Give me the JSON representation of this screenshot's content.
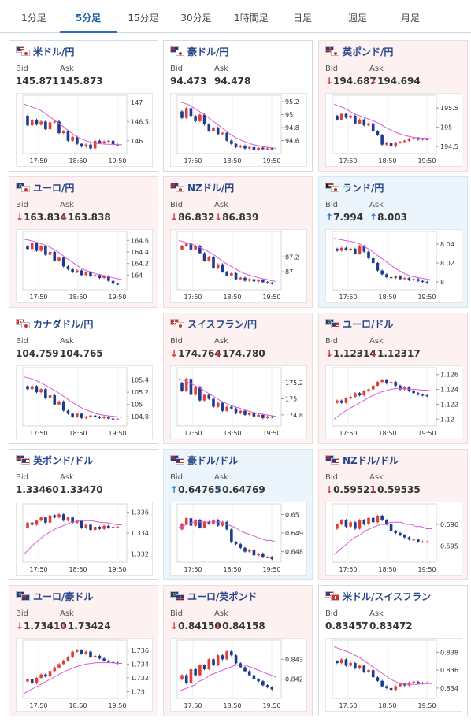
{
  "tabs": [
    {
      "label": "1分足",
      "active": false
    },
    {
      "label": "5分足",
      "active": true
    },
    {
      "label": "15分足",
      "active": false
    },
    {
      "label": "30分足",
      "active": false
    },
    {
      "label": "1時間足",
      "active": false
    },
    {
      "label": "日足",
      "active": false
    },
    {
      "label": "週足",
      "active": false
    },
    {
      "label": "月足",
      "active": false
    }
  ],
  "labels": {
    "bid": "Bid",
    "ask": "Ask"
  },
  "colors": {
    "down_arrow": "#d23b3b",
    "up_arrow": "#2f7cc4",
    "ma": "#d85ad8",
    "candle_up": "#e0403a",
    "candle_down": "#1d3b8f"
  },
  "x_ticks": [
    "17:50",
    "18:50",
    "19:50"
  ],
  "panels": [
    {
      "title": "米ドル/円",
      "flags": [
        "us",
        "jp"
      ],
      "trend": "none",
      "bid": "145.871",
      "ask": "145.873",
      "chart_data": {
        "type": "candlestick",
        "y_ticks": [
          147,
          146.5,
          146
        ],
        "ylim": [
          145.75,
          147.1
        ],
        "path": [
          146.65,
          146.4,
          146.55,
          146.42,
          146.5,
          146.3,
          146.48,
          146.5,
          146.2,
          146.25,
          146.0,
          146.1,
          145.92,
          145.85,
          145.9,
          145.8,
          146.0,
          145.95,
          145.98,
          146.0,
          145.9,
          145.88
        ],
        "ma": [
          146.95,
          146.9,
          146.85,
          146.8,
          146.72,
          146.62,
          146.52,
          146.42,
          146.32,
          146.22,
          146.12,
          146.05,
          146.0,
          145.96,
          145.93,
          145.92,
          145.91,
          145.91,
          145.9,
          145.9
        ]
      }
    },
    {
      "title": "豪ドル/円",
      "flags": [
        "au",
        "jp"
      ],
      "trend": "none",
      "bid": "94.473",
      "ask": "94.478",
      "chart_data": {
        "type": "candlestick",
        "y_ticks": [
          95.2,
          95,
          94.8,
          94.6
        ],
        "ylim": [
          94.45,
          95.25
        ],
        "path": [
          95.05,
          94.95,
          95.1,
          94.98,
          94.9,
          95.0,
          94.85,
          94.75,
          94.8,
          94.7,
          94.72,
          94.6,
          94.55,
          94.5,
          94.52,
          94.48,
          94.5,
          94.46,
          94.49,
          94.47,
          94.48,
          94.47
        ],
        "ma": [
          95.2,
          95.18,
          95.15,
          95.1,
          95.05,
          95.0,
          94.94,
          94.88,
          94.82,
          94.76,
          94.7,
          94.65,
          94.61,
          94.58,
          94.55,
          94.53,
          94.51,
          94.5,
          94.49,
          94.48
        ]
      }
    },
    {
      "title": "英ポンド/円",
      "flags": [
        "uk",
        "jp"
      ],
      "trend": "down",
      "bid": "194.687",
      "ask": "194.694",
      "chart_data": {
        "type": "candlestick",
        "y_ticks": [
          195.5,
          195,
          194.5
        ],
        "ylim": [
          194.4,
          195.75
        ],
        "path": [
          195.3,
          195.2,
          195.35,
          195.25,
          195.3,
          195.1,
          195.2,
          195.05,
          195.1,
          194.9,
          194.8,
          194.55,
          194.6,
          194.5,
          194.6,
          194.62,
          194.65,
          194.7,
          194.72,
          194.68,
          194.7,
          194.69
        ],
        "ma": [
          195.6,
          195.55,
          195.5,
          195.42,
          195.35,
          195.3,
          195.25,
          195.2,
          195.15,
          195.08,
          195.0,
          194.93,
          194.87,
          194.82,
          194.78,
          194.75,
          194.73,
          194.72,
          194.71,
          194.7
        ]
      }
    },
    {
      "title": "ユーロ/円",
      "flags": [
        "eu",
        "jp"
      ],
      "trend": "down",
      "bid": "163.834",
      "ask": "163.838",
      "chart_data": {
        "type": "candlestick",
        "y_ticks": [
          164.6,
          164.4,
          164.2,
          164
        ],
        "ylim": [
          163.8,
          164.7
        ],
        "path": [
          164.5,
          164.45,
          164.55,
          164.42,
          164.5,
          164.35,
          164.4,
          164.25,
          164.3,
          164.15,
          164.1,
          164.05,
          164.08,
          164.0,
          164.05,
          163.98,
          164.0,
          163.95,
          163.98,
          163.9,
          163.85,
          163.84
        ],
        "ma": [
          164.62,
          164.6,
          164.58,
          164.55,
          164.52,
          164.48,
          164.43,
          164.37,
          164.3,
          164.24,
          164.18,
          164.12,
          164.08,
          164.05,
          164.02,
          164.0,
          163.98,
          163.96,
          163.94,
          163.92
        ]
      }
    },
    {
      "title": "NZドル/円",
      "flags": [
        "nz",
        "jp"
      ],
      "trend": "down",
      "bid": "86.832",
      "ask": "86.839",
      "chart_data": {
        "type": "candlestick",
        "y_ticks": [
          87.2,
          87
        ],
        "ylim": [
          86.8,
          87.5
        ],
        "path": [
          87.3,
          87.35,
          87.38,
          87.3,
          87.35,
          87.25,
          87.15,
          87.2,
          87.05,
          87.1,
          87.0,
          86.95,
          86.98,
          86.9,
          86.92,
          86.88,
          86.9,
          86.87,
          86.89,
          86.86,
          86.85,
          86.84
        ],
        "ma": [
          87.42,
          87.4,
          87.38,
          87.36,
          87.33,
          87.3,
          87.26,
          87.22,
          87.17,
          87.12,
          87.08,
          87.04,
          87.0,
          86.97,
          86.95,
          86.93,
          86.91,
          86.9,
          86.88,
          86.87
        ]
      }
    },
    {
      "title": "ランド/円",
      "flags": [
        "za",
        "jp"
      ],
      "trend": "up",
      "bid": "7.994",
      "ask": "8.003",
      "chart_data": {
        "type": "candlestick",
        "y_ticks": [
          8.04,
          8.02,
          8
        ],
        "ylim": [
          7.995,
          8.05
        ],
        "path": [
          8.035,
          8.033,
          8.036,
          8.034,
          8.035,
          8.03,
          8.038,
          8.032,
          8.025,
          8.02,
          8.012,
          8.008,
          8.005,
          8.004,
          8.006,
          8.003,
          8.004,
          8.002,
          8.003,
          8.001,
          8.0,
          7.999
        ],
        "ma": [
          8.046,
          8.045,
          8.044,
          8.043,
          8.042,
          8.04,
          8.037,
          8.034,
          8.03,
          8.026,
          8.022,
          8.018,
          8.014,
          8.011,
          8.008,
          8.006,
          8.005,
          8.004,
          8.003,
          8.002
        ]
      }
    },
    {
      "title": "カナダドル/円",
      "flags": [
        "ca",
        "jp"
      ],
      "trend": "none",
      "bid": "104.759",
      "ask": "104.765",
      "chart_data": {
        "type": "candlestick",
        "y_ticks": [
          105.4,
          105.2,
          105,
          104.8
        ],
        "ylim": [
          104.7,
          105.55
        ],
        "path": [
          105.3,
          105.25,
          105.3,
          105.2,
          105.25,
          105.1,
          105.15,
          105.0,
          105.05,
          104.9,
          104.85,
          104.8,
          104.85,
          104.78,
          104.8,
          104.82,
          104.8,
          104.78,
          104.8,
          104.77,
          104.76,
          104.76
        ],
        "ma": [
          105.45,
          105.43,
          105.4,
          105.36,
          105.32,
          105.27,
          105.22,
          105.17,
          105.11,
          105.05,
          105.0,
          104.95,
          104.91,
          104.88,
          104.85,
          104.83,
          104.82,
          104.81,
          104.8,
          104.79
        ]
      }
    },
    {
      "title": "スイスフラン/円",
      "flags": [
        "ch",
        "jp"
      ],
      "trend": "down",
      "bid": "174.764",
      "ask": "174.780",
      "chart_data": {
        "type": "candlestick",
        "y_ticks": [
          175.2,
          175,
          174.8
        ],
        "ylim": [
          174.7,
          175.35
        ],
        "path": [
          175.2,
          175.1,
          175.25,
          175.05,
          175.15,
          174.98,
          175.05,
          175.0,
          174.9,
          174.95,
          174.85,
          174.9,
          174.88,
          174.82,
          174.85,
          174.8,
          174.82,
          174.78,
          174.8,
          174.76,
          174.78,
          174.77
        ],
        "ma": [
          175.25,
          175.23,
          175.2,
          175.17,
          175.14,
          175.1,
          175.06,
          175.02,
          174.98,
          174.95,
          174.92,
          174.9,
          174.88,
          174.86,
          174.84,
          174.82,
          174.81,
          174.8,
          174.79,
          174.78
        ]
      }
    },
    {
      "title": "ユーロ/ドル",
      "flags": [
        "eu",
        "us"
      ],
      "trend": "down",
      "bid": "1.12314",
      "ask": "1.12317",
      "chart_data": {
        "type": "candlestick",
        "y_ticks": [
          1.126,
          1.124,
          1.122,
          1.12
        ],
        "ylim": [
          1.1195,
          1.1265
        ],
        "path": [
          1.1222,
          1.1225,
          1.1222,
          1.1228,
          1.123,
          1.1235,
          1.1232,
          1.1238,
          1.124,
          1.1245,
          1.125,
          1.1253,
          1.1248,
          1.125,
          1.1245,
          1.124,
          1.1243,
          1.1238,
          1.1235,
          1.1233,
          1.1232,
          1.1231
        ],
        "ma": [
          1.12,
          1.1205,
          1.121,
          1.1214,
          1.1218,
          1.1222,
          1.1226,
          1.123,
          1.1233,
          1.1236,
          1.1238,
          1.124,
          1.1241,
          1.1241,
          1.1241,
          1.124,
          1.124,
          1.1239,
          1.1239,
          1.1238
        ]
      }
    },
    {
      "title": "英ポンド/ドル",
      "flags": [
        "uk",
        "us"
      ],
      "trend": "none",
      "bid": "1.33460",
      "ask": "1.33470",
      "chart_data": {
        "type": "candlestick",
        "y_ticks": [
          1.336,
          1.334,
          1.332
        ],
        "ylim": [
          1.3315,
          1.3365
        ],
        "path": [
          1.3345,
          1.335,
          1.3348,
          1.3352,
          1.3355,
          1.335,
          1.3357,
          1.3355,
          1.3358,
          1.3352,
          1.3355,
          1.335,
          1.3352,
          1.3345,
          1.3348,
          1.3343,
          1.3346,
          1.3344,
          1.3347,
          1.3345,
          1.3346,
          1.3346
        ],
        "ma": [
          1.332,
          1.3325,
          1.333,
          1.3334,
          1.3338,
          1.3341,
          1.3344,
          1.3346,
          1.3348,
          1.335,
          1.3351,
          1.3352,
          1.3352,
          1.3352,
          1.3351,
          1.335,
          1.335,
          1.3349,
          1.3348,
          1.3348
        ]
      }
    },
    {
      "title": "豪ドル/ドル",
      "flags": [
        "au",
        "us"
      ],
      "trend": "up",
      "bid": "0.64765",
      "ask": "0.64769",
      "chart_data": {
        "type": "candlestick",
        "y_ticks": [
          0.65,
          0.649,
          0.648
        ],
        "ylim": [
          0.6476,
          0.6504
        ],
        "path": [
          0.6492,
          0.6495,
          0.6498,
          0.6494,
          0.6497,
          0.6493,
          0.6496,
          0.6495,
          0.6497,
          0.6494,
          0.6496,
          0.6492,
          0.6485,
          0.6484,
          0.6482,
          0.648,
          0.6481,
          0.6478,
          0.6479,
          0.6477,
          0.6477,
          0.6476
        ],
        "ma": [
          0.6493,
          0.6494,
          0.6495,
          0.6496,
          0.6496,
          0.6496,
          0.6496,
          0.6496,
          0.6496,
          0.6495,
          0.6494,
          0.6493,
          0.6491,
          0.649,
          0.6489,
          0.6488,
          0.6487,
          0.6486,
          0.6486,
          0.6485
        ]
      }
    },
    {
      "title": "NZドル/ドル",
      "flags": [
        "nz",
        "us"
      ],
      "trend": "down",
      "bid": "0.59521",
      "ask": "0.59535",
      "chart_data": {
        "type": "candlestick",
        "y_ticks": [
          0.596,
          0.595
        ],
        "ylim": [
          0.5944,
          0.5968
        ],
        "path": [
          0.5958,
          0.596,
          0.5962,
          0.5959,
          0.5961,
          0.5958,
          0.5962,
          0.596,
          0.5963,
          0.5961,
          0.5964,
          0.5962,
          0.596,
          0.5957,
          0.5956,
          0.5955,
          0.5954,
          0.5953,
          0.5953,
          0.5952,
          0.5952,
          0.5952
        ],
        "ma": [
          0.5946,
          0.5948,
          0.595,
          0.5952,
          0.5954,
          0.5955,
          0.5957,
          0.5958,
          0.5959,
          0.596,
          0.596,
          0.5961,
          0.5961,
          0.5961,
          0.596,
          0.596,
          0.5959,
          0.5959,
          0.5958,
          0.5958
        ]
      }
    },
    {
      "title": "ユーロ/豪ドル",
      "flags": [
        "eu",
        "au"
      ],
      "trend": "down",
      "bid": "1.73410",
      "ask": "1.73424",
      "chart_data": {
        "type": "candlestick",
        "y_ticks": [
          1.736,
          1.734,
          1.732,
          1.73
        ],
        "ylim": [
          1.7295,
          1.737
        ],
        "path": [
          1.7315,
          1.7318,
          1.7312,
          1.732,
          1.7325,
          1.7322,
          1.733,
          1.7335,
          1.734,
          1.7345,
          1.735,
          1.7358,
          1.736,
          1.7355,
          1.7358,
          1.735,
          1.7352,
          1.7348,
          1.7345,
          1.7343,
          1.7342,
          1.7341
        ],
        "ma": [
          1.7298,
          1.7302,
          1.7306,
          1.731,
          1.7314,
          1.7318,
          1.7322,
          1.7326,
          1.733,
          1.7333,
          1.7336,
          1.7338,
          1.734,
          1.7341,
          1.7342,
          1.7342,
          1.7342,
          1.7342,
          1.7341,
          1.7341
        ]
      }
    },
    {
      "title": "ユーロ/英ポンド",
      "flags": [
        "eu",
        "uk"
      ],
      "trend": "down",
      "bid": "0.84150",
      "ask": "0.84158",
      "chart_data": {
        "type": "candlestick",
        "y_ticks": [
          0.843,
          0.842
        ],
        "ylim": [
          0.8412,
          0.8438
        ],
        "path": [
          0.842,
          0.8422,
          0.8418,
          0.8425,
          0.8422,
          0.8427,
          0.8425,
          0.843,
          0.8427,
          0.8432,
          0.843,
          0.8434,
          0.8432,
          0.8428,
          0.8426,
          0.8424,
          0.8422,
          0.842,
          0.8419,
          0.8417,
          0.8416,
          0.8415
        ],
        "ma": [
          0.8414,
          0.8415,
          0.8416,
          0.8417,
          0.8419,
          0.842,
          0.8422,
          0.8423,
          0.8424,
          0.8425,
          0.8426,
          0.8427,
          0.8427,
          0.8427,
          0.8426,
          0.8425,
          0.8424,
          0.8423,
          0.8422,
          0.8421
        ]
      }
    },
    {
      "title": "米ドル/スイスフラン",
      "flags": [
        "us",
        "ch"
      ],
      "trend": "none",
      "bid": "0.83457",
      "ask": "0.83472",
      "chart_data": {
        "type": "candlestick",
        "y_ticks": [
          0.838,
          0.836,
          0.834
        ],
        "ylim": [
          0.8332,
          0.839
        ],
        "path": [
          0.837,
          0.8368,
          0.8372,
          0.8365,
          0.8368,
          0.8362,
          0.8365,
          0.8358,
          0.836,
          0.8352,
          0.8348,
          0.8342,
          0.834,
          0.8338,
          0.8342,
          0.8345,
          0.8343,
          0.8346,
          0.8347,
          0.8345,
          0.8346,
          0.8346
        ],
        "ma": [
          0.8386,
          0.8384,
          0.8382,
          0.838,
          0.8377,
          0.8374,
          0.837,
          0.8366,
          0.8362,
          0.8358,
          0.8354,
          0.835,
          0.8347,
          0.8345,
          0.8344,
          0.8344,
          0.8344,
          0.8345,
          0.8345,
          0.8345
        ]
      }
    }
  ]
}
